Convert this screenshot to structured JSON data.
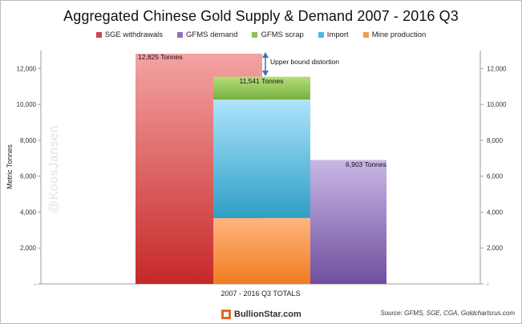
{
  "chart_data": {
    "type": "bar",
    "title": "Aggregated Chinese Gold Supply & Demand 2007 - 2016 Q3",
    "categories": [
      "2007 - 2016 Q3 TOTALS"
    ],
    "ylabel": "Metric Tonnes",
    "ylim": [
      0,
      13000
    ],
    "yticks": [
      0,
      2000,
      4000,
      6000,
      8000,
      10000,
      12000
    ],
    "ytick_labels": [
      "-",
      "2,000",
      "4,000",
      "6,000",
      "8,000",
      "10,000",
      "12,000"
    ],
    "legend_position": "top",
    "grid": false,
    "series": [
      {
        "name": "SGE withdrawals",
        "color_top": "#f4a3a3",
        "color_bottom": "#c62828",
        "stack": "sge",
        "base": 0,
        "value": 12825
      },
      {
        "name": "GFMS demand",
        "color_top": "#c9b7e6",
        "color_bottom": "#6f4f9f",
        "stack": "gfms_demand",
        "base": 0,
        "value": 6903
      },
      {
        "name": "GFMS scrap",
        "color_top": "#b9dc7c",
        "color_bottom": "#74b23f",
        "stack": "supply",
        "base": 10270,
        "value": 1271
      },
      {
        "name": "Import",
        "color_top": "#aee4fb",
        "color_bottom": "#2e9fc6",
        "stack": "supply",
        "base": 3670,
        "value": 6600
      },
      {
        "name": "Mine production",
        "color_top": "#ffb580",
        "color_bottom": "#f07c1f",
        "stack": "supply",
        "base": 0,
        "value": 3670
      }
    ],
    "annotations": [
      {
        "text": "12,825 Tonnes",
        "target": "SGE withdrawals"
      },
      {
        "text": "11,541 Tonnes",
        "target": "GFMS scrap"
      },
      {
        "text": "6,903 Tonnes",
        "target": "GFMS demand"
      },
      {
        "text": "Upper bound distortion",
        "target": "distortion"
      }
    ]
  },
  "footer": {
    "source": "Source: GFMS, SGE, CGA, Goldchartsrus.com",
    "logo_text": "BullionStar.com"
  },
  "watermark": "@KoosJansen"
}
